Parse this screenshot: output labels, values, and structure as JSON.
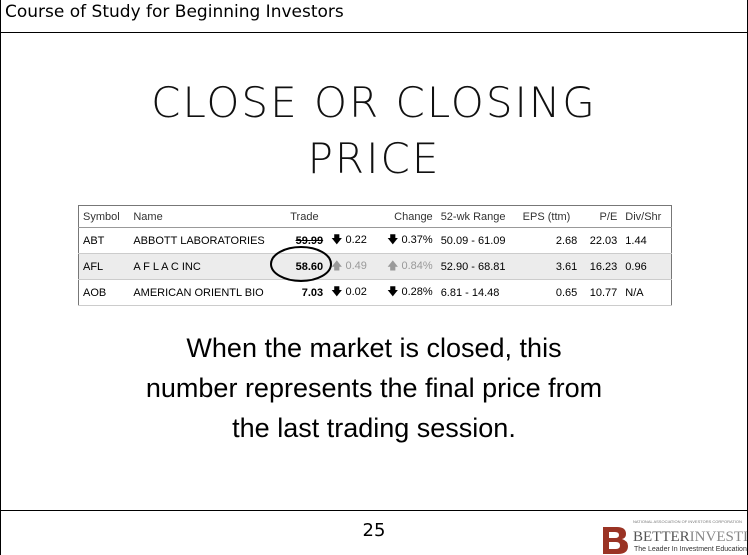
{
  "header": {
    "title": "Course of Study for Beginning Investors"
  },
  "slide": {
    "title_lines": [
      "CLOSE OR CLOSING",
      "PRICE"
    ],
    "body_lines": [
      "When the market is closed, this",
      "number represents the final price from",
      "the last trading session."
    ]
  },
  "table": {
    "headers": [
      "Symbol",
      "Name",
      "Trade",
      "Change",
      "52-wk Range",
      "EPS (ttm)",
      "P/E",
      "Div/Shr"
    ],
    "rows": [
      [
        "ABT",
        "ABBOTT LABORATORIES",
        "59.99",
        "0.22",
        "0.37%",
        "50.09 - 61.09",
        "2.68",
        "22.03",
        "1.44"
      ],
      [
        "AFL",
        "A F L A C INC",
        "58.60",
        "0.49",
        "0.84%",
        "52.90 - 68.81",
        "3.61",
        "16.23",
        "0.96"
      ],
      [
        "AOB",
        "AMERICAN ORIENTL BIO",
        "7.03",
        "0.02",
        "0.28%",
        "6.81 - 14.48",
        "0.65",
        "10.77",
        "N/A"
      ]
    ]
  },
  "footer": {
    "page_number": "25",
    "logo": {
      "org": "NATIONAL ASSOCIATION OF INVESTORS CORPORATION",
      "name_a": "BETTER",
      "name_b": "INVESTING",
      "tagline": "The Leader In Investment Education"
    }
  }
}
